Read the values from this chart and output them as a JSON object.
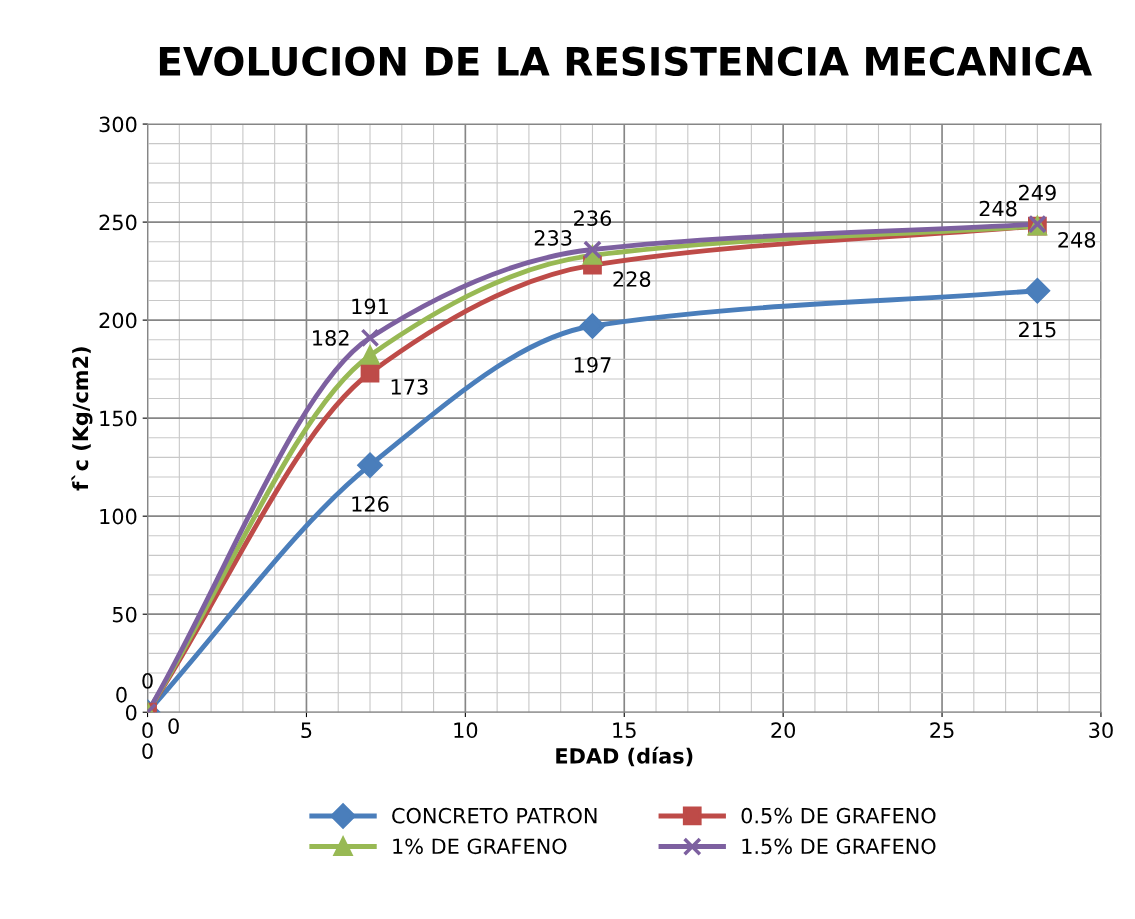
{
  "chart_data": {
    "type": "line",
    "title": "EVOLUCION DE LA RESISTENCIA MECANICA",
    "xlabel": "EDAD (días)",
    "ylabel": "f`c (Kg/cm2)",
    "x": [
      0,
      7,
      14,
      28
    ],
    "series": [
      {
        "name": "CONCRETO PATRON",
        "color": "#4a7ebb",
        "marker": "diamond",
        "values": [
          0,
          126,
          197,
          215
        ]
      },
      {
        "name": "0.5% DE GRAFENO",
        "color": "#be4b48",
        "marker": "square",
        "values": [
          0,
          173,
          228,
          248
        ]
      },
      {
        "name": "1% DE GRAFENO",
        "color": "#98b954",
        "marker": "triangle",
        "values": [
          0,
          182,
          233,
          248
        ]
      },
      {
        "name": "1.5% DE GRAFENO",
        "color": "#7d60a0",
        "marker": "cross",
        "values": [
          0,
          191,
          236,
          249
        ]
      }
    ],
    "xlim": [
      0,
      30
    ],
    "xticks": [
      0,
      5,
      10,
      15,
      20,
      25,
      30
    ],
    "ylim": [
      0,
      300
    ],
    "yticks": [
      0,
      50,
      100,
      150,
      200,
      250,
      300
    ],
    "grid": true,
    "legend": "bottom",
    "data_labels": true,
    "line_style": "solid"
  }
}
